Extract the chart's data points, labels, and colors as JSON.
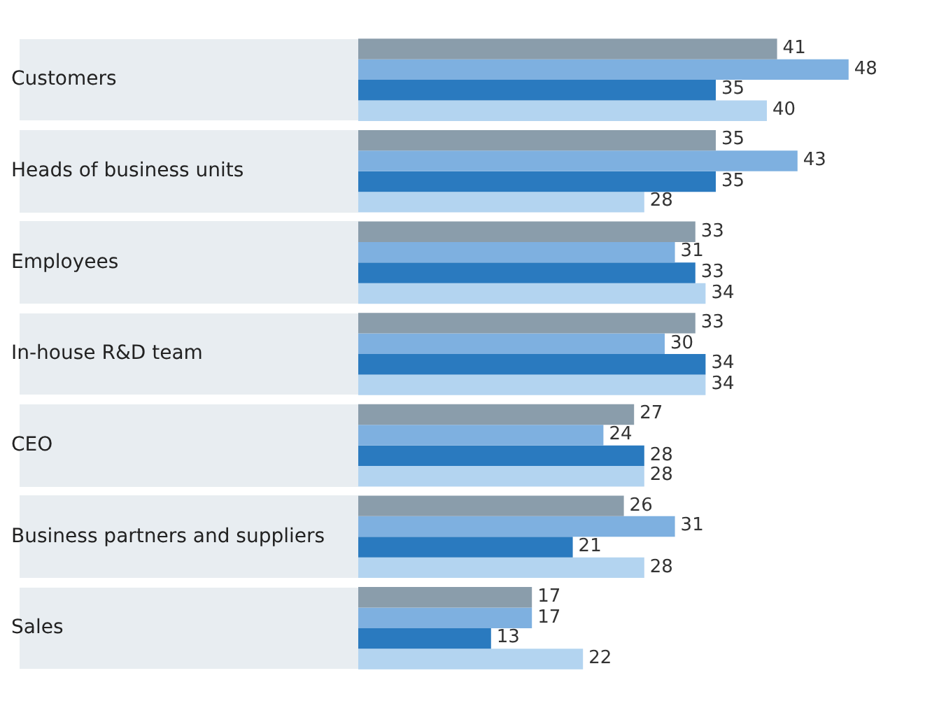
{
  "chart_data": {
    "type": "bar",
    "orientation": "horizontal",
    "data_labels": true,
    "legend": false,
    "categories": [
      "Customers",
      "Heads of business units",
      "Employees",
      "In-house R&D team",
      "CEO",
      "Business partners and suppliers",
      "Sales"
    ],
    "series": [
      {
        "color": "#8a9dab",
        "values": [
          41,
          35,
          33,
          33,
          27,
          26,
          17
        ]
      },
      {
        "color": "#7eb0e0",
        "values": [
          48,
          43,
          31,
          30,
          24,
          31,
          17
        ]
      },
      {
        "color": "#2a7abf",
        "values": [
          35,
          35,
          33,
          34,
          28,
          21,
          13
        ]
      },
      {
        "color": "#b3d4f0",
        "values": [
          40,
          28,
          34,
          34,
          28,
          28,
          22
        ]
      }
    ]
  }
}
